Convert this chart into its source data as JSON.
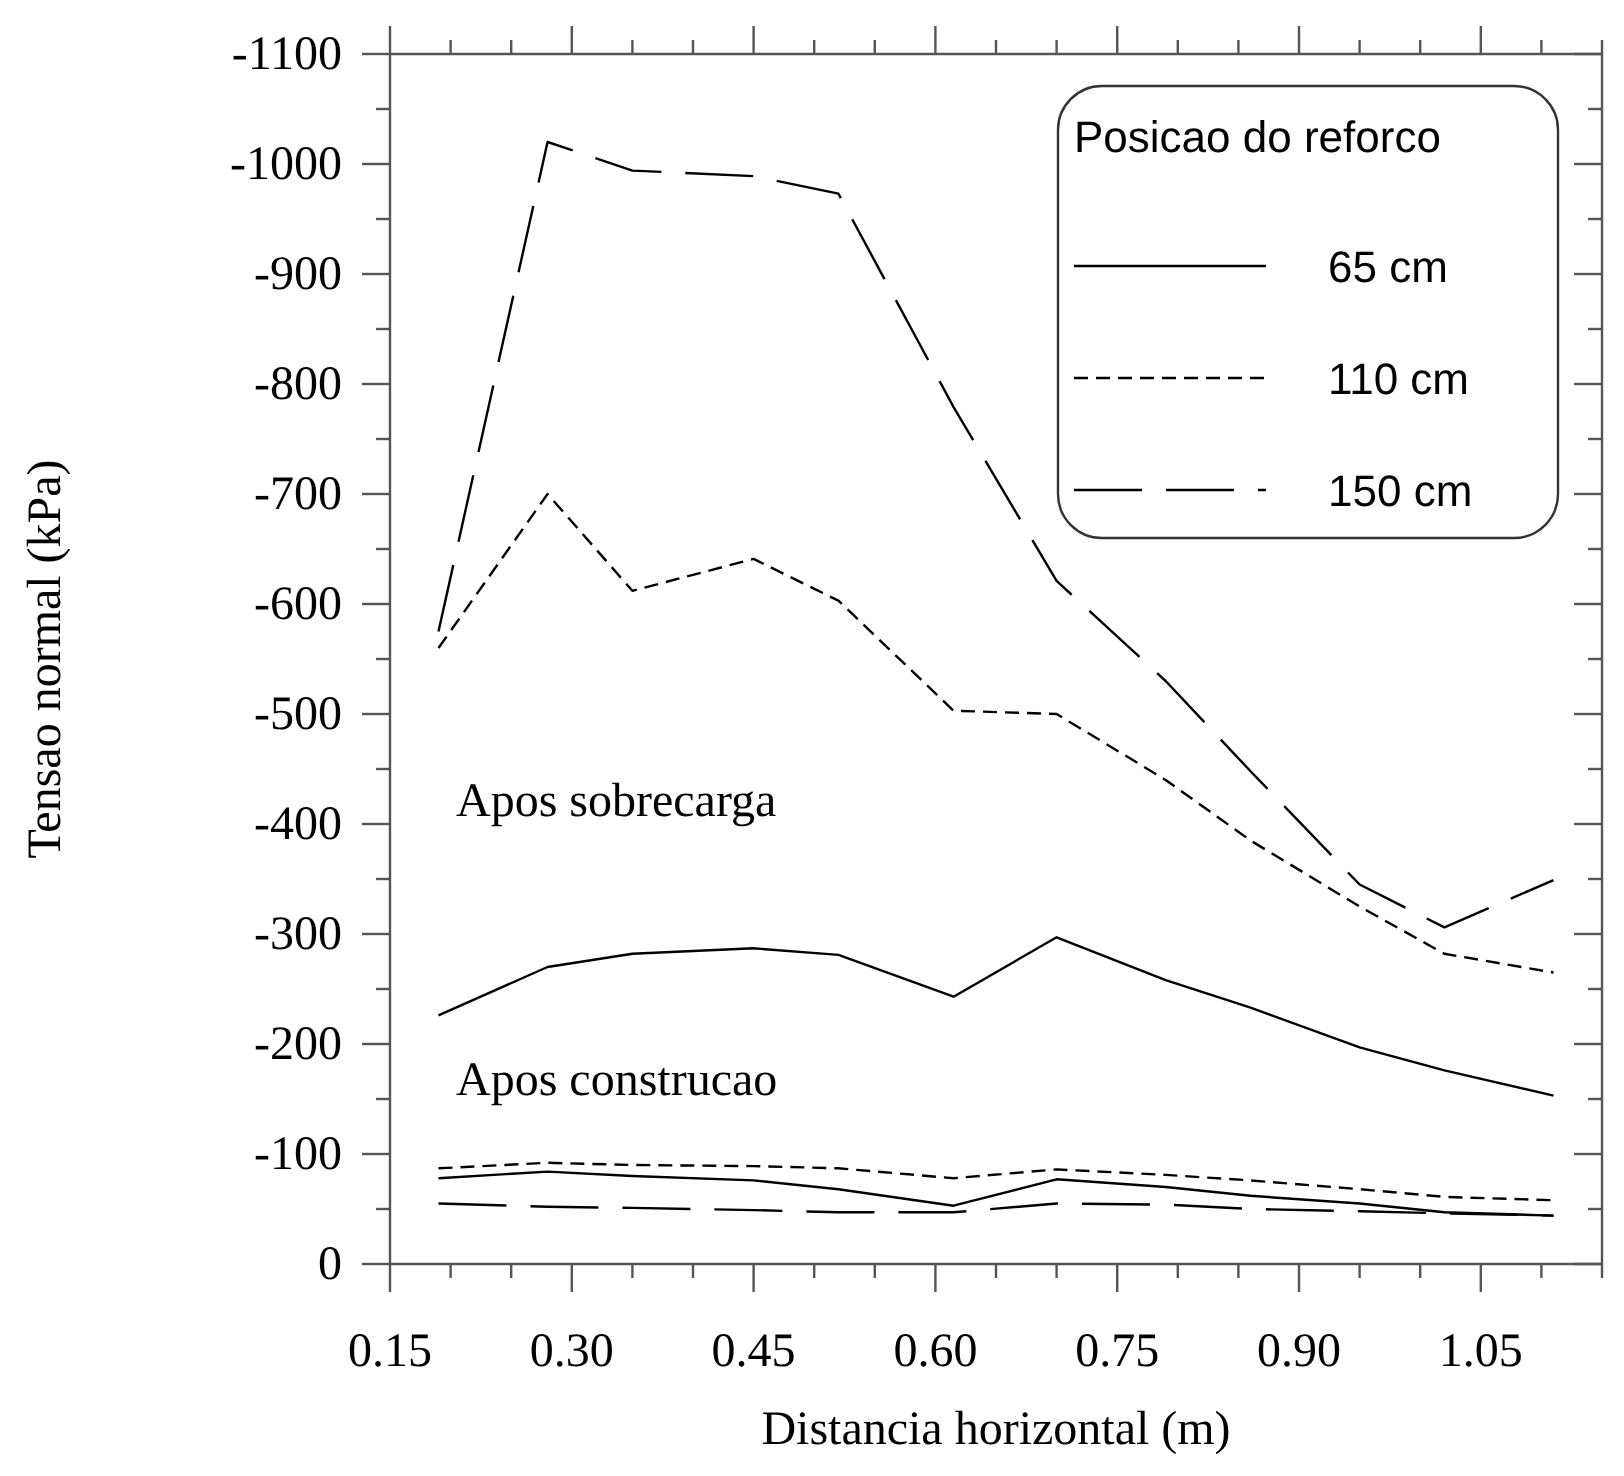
{
  "chart_data": {
    "type": "line",
    "xlabel": "Distancia horizontal (m)",
    "ylabel": "Tensao normal (kPa)",
    "legend_title": "Posicao do reforco",
    "legend": "top right",
    "x": [
      0.19,
      0.28,
      0.35,
      0.45,
      0.52,
      0.615,
      0.7,
      0.79,
      0.86,
      0.95,
      1.02,
      1.11
    ],
    "series": [
      {
        "name": "65 cm",
        "color": "#000000",
        "line_style": "solid",
        "values": [
          -226,
          -270,
          -282,
          -287,
          -281,
          -243,
          -297,
          -258,
          -233,
          -197,
          -176,
          -153
        ]
      },
      {
        "name": "110 cm",
        "color": "#000000",
        "line_style": "dotted",
        "values": [
          -560,
          -700,
          -612,
          -641,
          -603,
          -503,
          -500,
          -440,
          -385,
          -325,
          -282,
          -265
        ]
      },
      {
        "name": "150 cm",
        "color": "#000000",
        "line_style": "dashed",
        "values": [
          -575,
          -1020,
          -994,
          -989,
          -973,
          -779,
          -621,
          -530,
          -448,
          -345,
          -306,
          -349
        ]
      },
      {
        "color": "#000000",
        "line_style": "solid",
        "values": [
          -78,
          -84,
          -80,
          -76,
          -68,
          -53,
          -77,
          -70,
          -62,
          -55,
          -47,
          -44
        ]
      },
      {
        "color": "#000000",
        "line_style": "dotted",
        "values": [
          -87,
          -92,
          -90,
          -89,
          -87,
          -78,
          -86,
          -81,
          -76,
          -68,
          -61,
          -58
        ]
      },
      {
        "color": "#000000",
        "line_style": "dashed",
        "values": [
          -55,
          -52,
          -51,
          -49,
          -47,
          -47,
          -55,
          -54,
          -50,
          -48,
          -46,
          -44
        ]
      }
    ],
    "annotations": [
      "Apos sobrecarga",
      "Apos construcao"
    ],
    "xlim": [
      0.15,
      1.15
    ],
    "ylim": [
      0,
      -1100
    ],
    "xticks": [
      {
        "value": 0.15,
        "label": "0.15"
      },
      {
        "value": 0.3,
        "label": "0.30"
      },
      {
        "value": 0.45,
        "label": "0.45"
      },
      {
        "value": 0.6,
        "label": "0.60"
      },
      {
        "value": 0.75,
        "label": "0.75"
      },
      {
        "value": 0.9,
        "label": "0.90"
      },
      {
        "value": 1.05,
        "label": "1.05"
      }
    ],
    "yticks": [
      0,
      -100,
      -200,
      -300,
      -400,
      -500,
      -600,
      -700,
      -800,
      -900,
      -1000,
      -1100
    ],
    "grid": false,
    "marker": "none"
  }
}
